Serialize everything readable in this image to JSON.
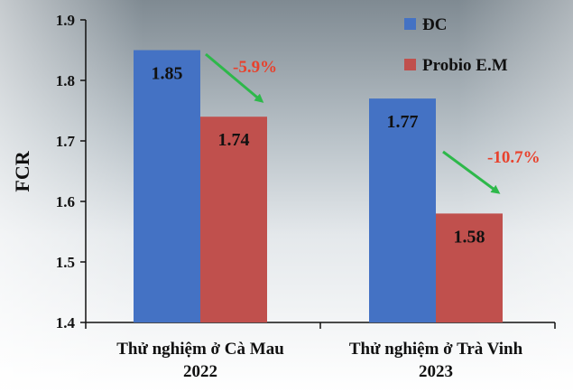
{
  "chart_data": {
    "type": "bar",
    "ylabel": "FCR",
    "ylim": [
      1.4,
      1.9
    ],
    "yticks": [
      "1.4",
      "1.5",
      "1.6",
      "1.7",
      "1.8",
      "1.9"
    ],
    "categories": [
      [
        "Thử nghiệm ở Cà Mau",
        "2022"
      ],
      [
        "Thử nghiệm ở Trà Vinh",
        "2023"
      ]
    ],
    "series": [
      {
        "name": "ĐC",
        "color": "#4472C4",
        "values": [
          1.85,
          1.77
        ],
        "labels": [
          "1.85",
          "1.77"
        ]
      },
      {
        "name": "Probio E.M",
        "color": "#C0504D",
        "values": [
          1.74,
          1.58
        ],
        "labels": [
          "1.74",
          "1.58"
        ]
      }
    ],
    "annotations": [
      {
        "text": "-5.9%",
        "color": "#E8412C",
        "arrow_color": "#2DB84A"
      },
      {
        "text": "-10.7%",
        "color": "#E8412C",
        "arrow_color": "#2DB84A"
      }
    ],
    "legend": "top-right",
    "grid": false
  }
}
